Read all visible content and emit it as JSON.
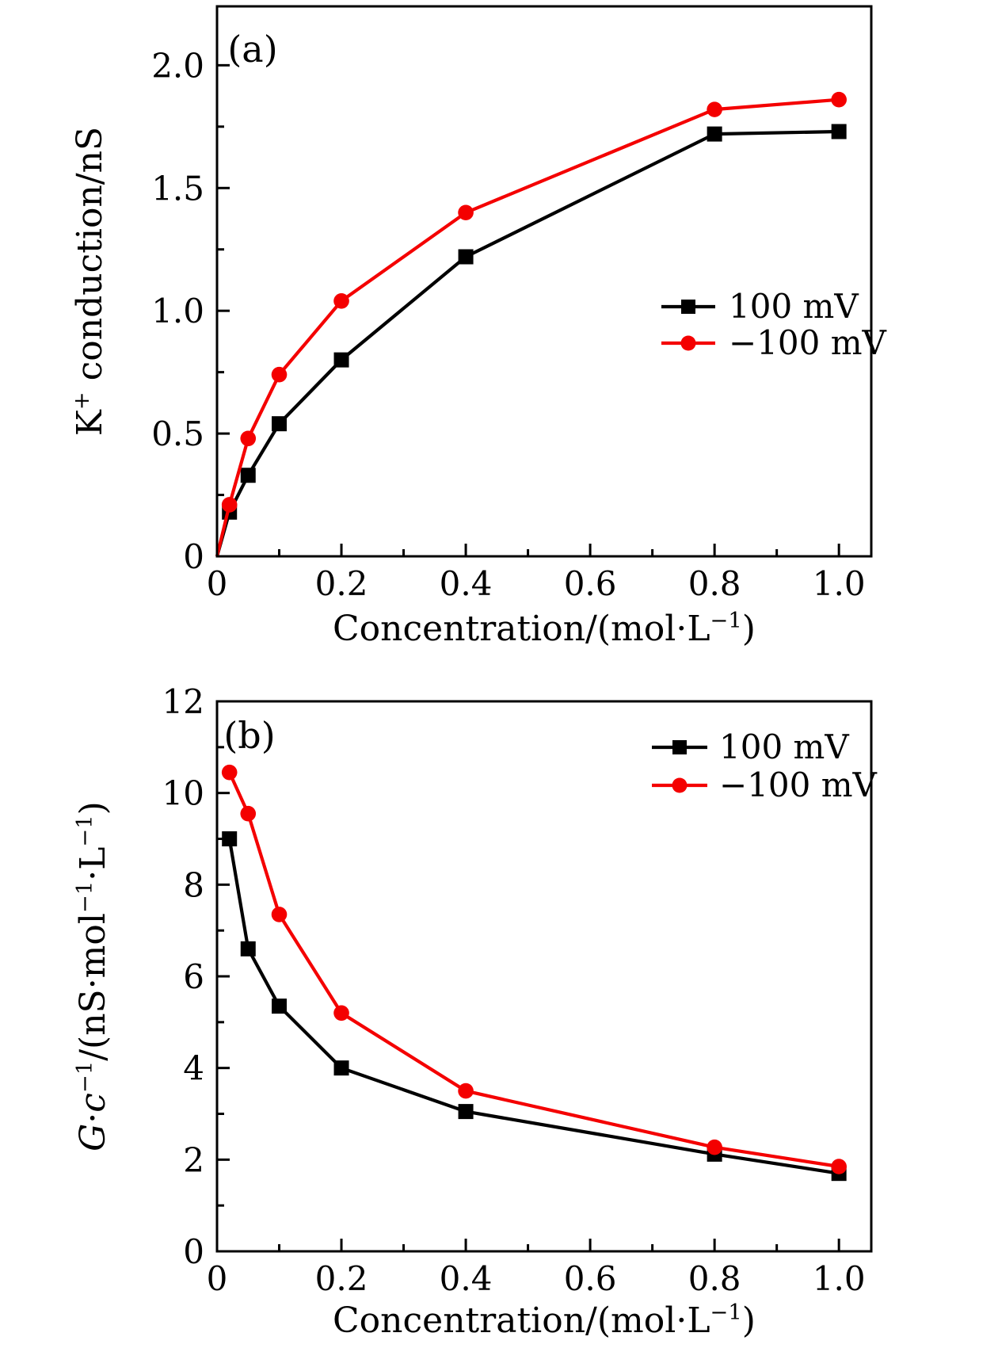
{
  "figure": {
    "background": "#ffffff",
    "series_colors": {
      "positive_bias": "#000000",
      "negative_bias": "#f40000"
    }
  },
  "chart_data": [
    {
      "id": "a",
      "type": "line",
      "panel_label": "(a)",
      "title": "",
      "xlabel": "Concentration/(mol·L⁻¹)",
      "ylabel": "K⁺ conduction/nS",
      "xlabel_rich": [
        {
          "t": "Concentration/(mol·L"
        },
        {
          "t": "−1",
          "sup": true
        },
        {
          "t": ")"
        }
      ],
      "ylabel_rich": [
        {
          "t": "K"
        },
        {
          "t": "+",
          "sup": true
        },
        {
          "t": " conduction/nS"
        }
      ],
      "xlim": [
        0,
        1.052
      ],
      "ylim": [
        0,
        2.24
      ],
      "xticks": [
        0,
        0.2,
        0.4,
        0.6,
        0.8,
        1.0
      ],
      "xticklabels": [
        "0",
        "0.2",
        "0.4",
        "0.6",
        "0.8",
        "1.0"
      ],
      "xminorticks": [
        0.1,
        0.3,
        0.5,
        0.7,
        0.9
      ],
      "yticks": [
        0,
        0.5,
        1.0,
        1.5,
        2.0
      ],
      "yticklabels": [
        "0",
        "0.5",
        "1.0",
        "1.5",
        "2.0"
      ],
      "yminorticks": [
        0.25,
        0.75,
        1.25,
        1.75
      ],
      "grid": false,
      "legend_position": "inside-right-middle",
      "x": [
        0.02,
        0.05,
        0.1,
        0.2,
        0.4,
        0.8,
        1.0
      ],
      "series": [
        {
          "name": "100 mV",
          "color": "#000000",
          "marker": "square",
          "starts_at_origin": true,
          "values": [
            0.18,
            0.33,
            0.54,
            0.8,
            1.22,
            1.72,
            1.73
          ]
        },
        {
          "name": "−100 mV",
          "color": "#f40000",
          "marker": "circle",
          "starts_at_origin": true,
          "values": [
            0.21,
            0.48,
            0.74,
            1.04,
            1.4,
            1.82,
            1.86
          ]
        }
      ]
    },
    {
      "id": "b",
      "type": "line",
      "panel_label": "(b)",
      "title": "",
      "xlabel": "Concentration/(mol·L⁻¹)",
      "ylabel": "G·c⁻¹/(nS·mol⁻¹·L⁻¹)",
      "xlabel_rich": [
        {
          "t": "Concentration/(mol·L"
        },
        {
          "t": "−1",
          "sup": true
        },
        {
          "t": ")"
        }
      ],
      "ylabel_rich": [
        {
          "t": "G",
          "italic": true
        },
        {
          "t": "·"
        },
        {
          "t": "c",
          "italic": true
        },
        {
          "t": "−1",
          "sup": true
        },
        {
          "t": "/(nS·mol"
        },
        {
          "t": "−1",
          "sup": true
        },
        {
          "t": "·L"
        },
        {
          "t": "−1",
          "sup": true
        },
        {
          "t": ")"
        }
      ],
      "xlim": [
        0,
        1.052
      ],
      "ylim": [
        0,
        12
      ],
      "xticks": [
        0,
        0.2,
        0.4,
        0.6,
        0.8,
        1.0
      ],
      "xticklabels": [
        "0",
        "0.2",
        "0.4",
        "0.6",
        "0.8",
        "1.0"
      ],
      "xminorticks": [
        0.1,
        0.3,
        0.5,
        0.7,
        0.9
      ],
      "yticks": [
        0,
        2,
        4,
        6,
        8,
        10,
        12
      ],
      "yticklabels": [
        "0",
        "2",
        "4",
        "6",
        "8",
        "10",
        "12"
      ],
      "yminorticks": [
        1,
        3,
        5,
        7,
        9,
        11
      ],
      "grid": false,
      "legend_position": "inside-top-right",
      "x": [
        0.02,
        0.05,
        0.1,
        0.2,
        0.4,
        0.8,
        1.0
      ],
      "series": [
        {
          "name": "100 mV",
          "color": "#000000",
          "marker": "square",
          "starts_at_origin": false,
          "values": [
            9.0,
            6.6,
            5.35,
            4.0,
            3.05,
            2.12,
            1.7
          ]
        },
        {
          "name": "−100 mV",
          "color": "#f40000",
          "marker": "circle",
          "starts_at_origin": false,
          "values": [
            10.45,
            9.55,
            7.35,
            5.2,
            3.5,
            2.27,
            1.85
          ]
        }
      ]
    }
  ]
}
